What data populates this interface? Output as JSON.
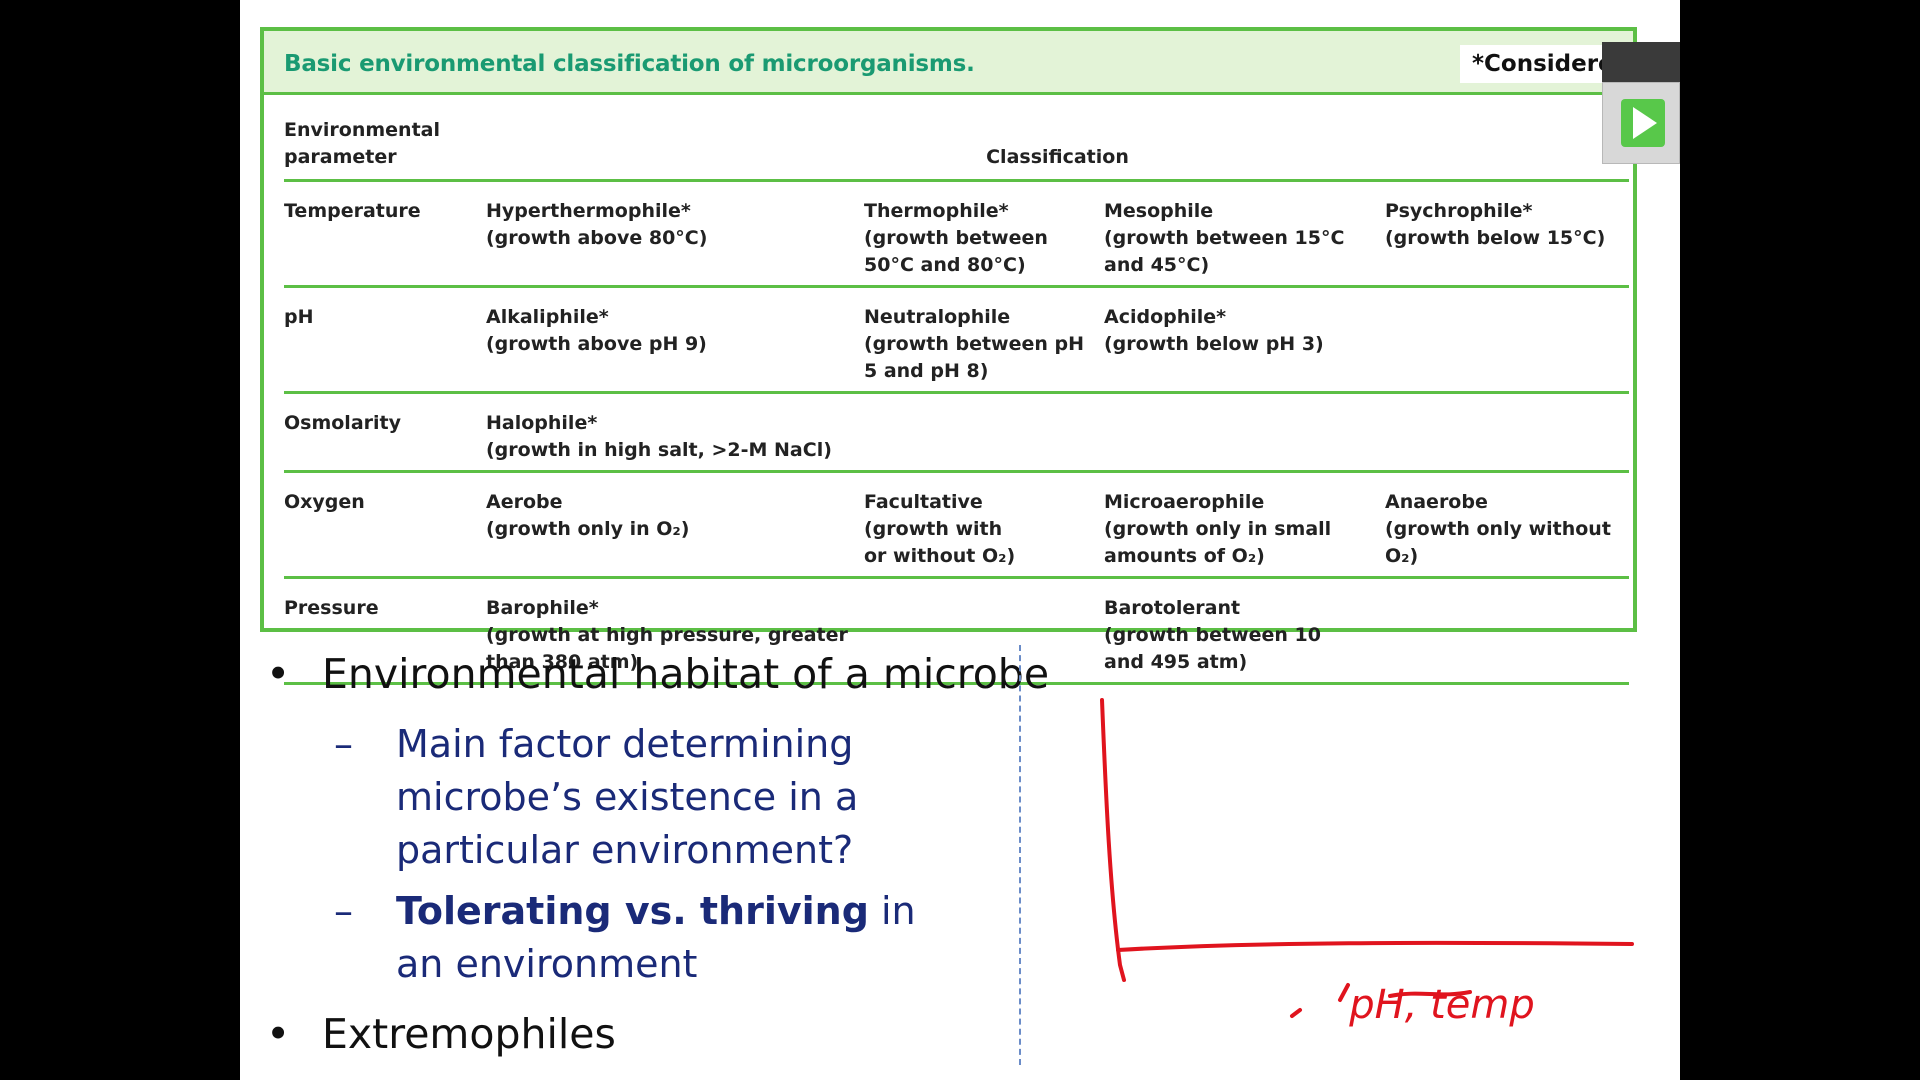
{
  "figure": {
    "title": "Basic environmental classification of microorganisms.",
    "note": "*Considered extremophiles."
  },
  "table": {
    "headers": {
      "parameter": "Environmental parameter",
      "classification": "Classification"
    },
    "rows": [
      {
        "parameter": "Temperature",
        "cells": [
          "Hyperthermophile*\n(growth above 80°C)",
          "Thermophile*\n(growth between\n50°C and 80°C)",
          "Mesophile\n(growth between 15°C\nand 45°C)",
          "Psychrophile*\n(growth below 15°C)"
        ]
      },
      {
        "parameter": "pH",
        "cells": [
          "Alkaliphile*\n(growth above pH 9)",
          "Neutralophile\n(growth between pH\n5 and pH 8)",
          "Acidophile*\n(growth below pH 3)",
          ""
        ]
      },
      {
        "parameter": "Osmolarity",
        "cells": [
          "Halophile*\n(growth in high salt, >2-M NaCl)",
          "",
          "",
          ""
        ]
      },
      {
        "parameter": "Oxygen",
        "cells": [
          "Aerobe\n(growth only in O₂)",
          "Facultative\n(growth with\nor without O₂)",
          "Microaerophile\n(growth only in small\namounts of O₂)",
          "Anaerobe\n(growth only without O₂)"
        ]
      },
      {
        "parameter": "Pressure",
        "cells": [
          "Barophile*\n(growth at high pressure, greater\nthan 380 atm)",
          "",
          "Barotolerant\n(growth between 10\nand 495 atm)",
          ""
        ]
      }
    ]
  },
  "bullets": {
    "b1": "Environmental habitat of a microbe",
    "sub1": "Main factor determining microbe’s existence in a particular environment?",
    "sub2_bold": "Tolerating vs. thriving",
    "sub2_rest": " in an environment",
    "b2": "Extremophiles"
  },
  "glyphs": {
    "bullet": "•",
    "dash": "–"
  },
  "drawing": {
    "annotation": "pH, temp",
    "color": "#e0141e"
  },
  "colors": {
    "accent_green": "#5cbf45",
    "title_green": "#1a9a72",
    "sub_bullet_blue": "#1a2a78"
  }
}
